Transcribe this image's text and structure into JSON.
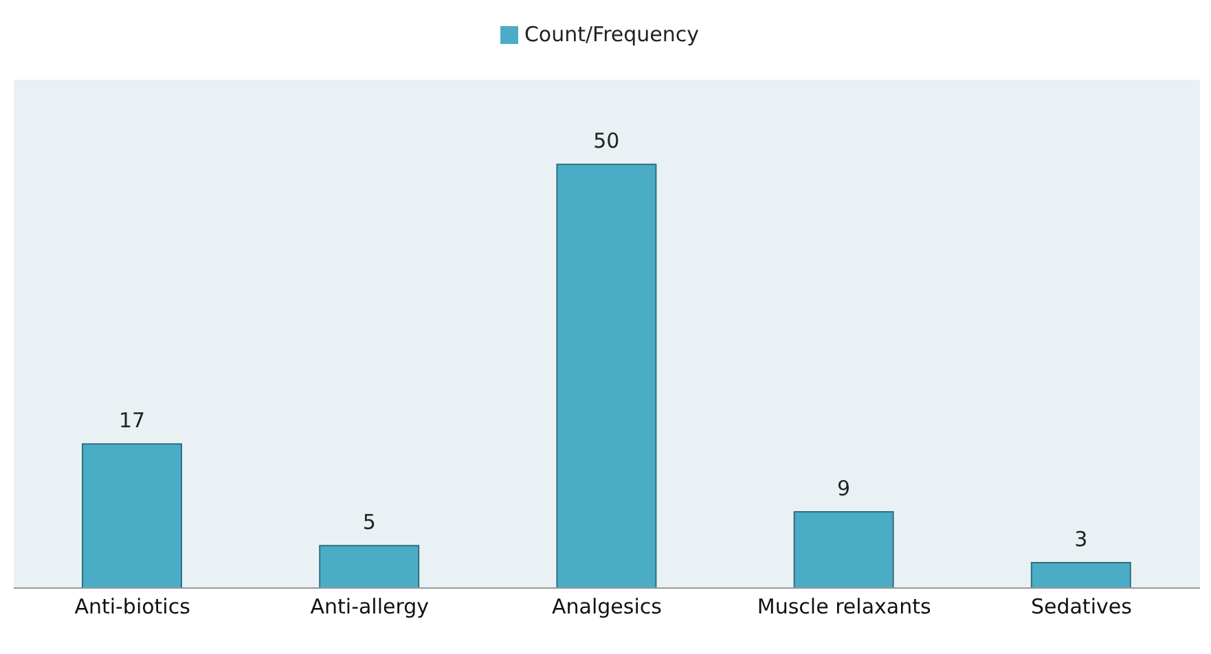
{
  "chart_data": {
    "type": "bar",
    "categories": [
      "Anti-biotics",
      "Anti-allergy",
      "Analgesics",
      "Muscle relaxants",
      "Sedatives"
    ],
    "series": [
      {
        "name": "Count/Frequency",
        "color": "#4bacc6",
        "values": [
          17,
          5,
          50,
          9,
          3
        ]
      }
    ],
    "data_labels": true,
    "legend": "top",
    "grid": false
  }
}
